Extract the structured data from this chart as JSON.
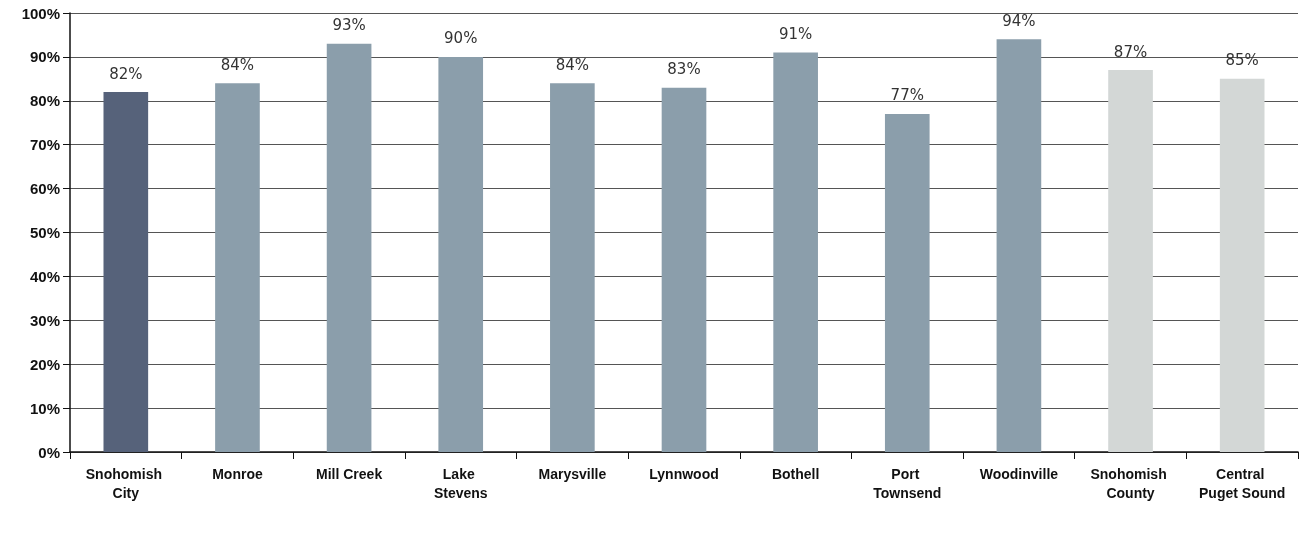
{
  "chart_data": {
    "type": "bar",
    "categories": [
      "Snohomish City",
      "Monroe",
      "Mill Creek",
      "Lake Stevens",
      "Marysville",
      "Lynnwood",
      "Bothell",
      "Port Townsend",
      "Woodinville",
      "Snohomish County",
      "Central Puget Sound"
    ],
    "values": [
      82,
      84,
      93,
      90,
      84,
      83,
      91,
      77,
      94,
      87,
      85
    ],
    "colors": [
      "#56627a",
      "#8b9eab",
      "#8b9eab",
      "#8b9eab",
      "#8b9eab",
      "#8b9eab",
      "#8b9eab",
      "#8b9eab",
      "#8b9eab",
      "#d3d7d6",
      "#d3d7d6"
    ],
    "value_labels": [
      "82%",
      "84%",
      "93%",
      "90%",
      "84%",
      "83%",
      "91%",
      "77%",
      "94%",
      "87%",
      "85%"
    ],
    "ylim": [
      0,
      100
    ],
    "yticks": [
      {
        "value": 0,
        "label": "0%"
      },
      {
        "value": 10,
        "label": "10%"
      },
      {
        "value": 20,
        "label": "20%"
      },
      {
        "value": 30,
        "label": "30%"
      },
      {
        "value": 40,
        "label": "40%"
      },
      {
        "value": 50,
        "label": "50%"
      },
      {
        "value": 60,
        "label": "60%"
      },
      {
        "value": 70,
        "label": "70%"
      },
      {
        "value": 80,
        "label": "80%"
      },
      {
        "value": 90,
        "label": "90%"
      },
      {
        "value": 100,
        "label": "100%"
      }
    ],
    "grid": true
  }
}
